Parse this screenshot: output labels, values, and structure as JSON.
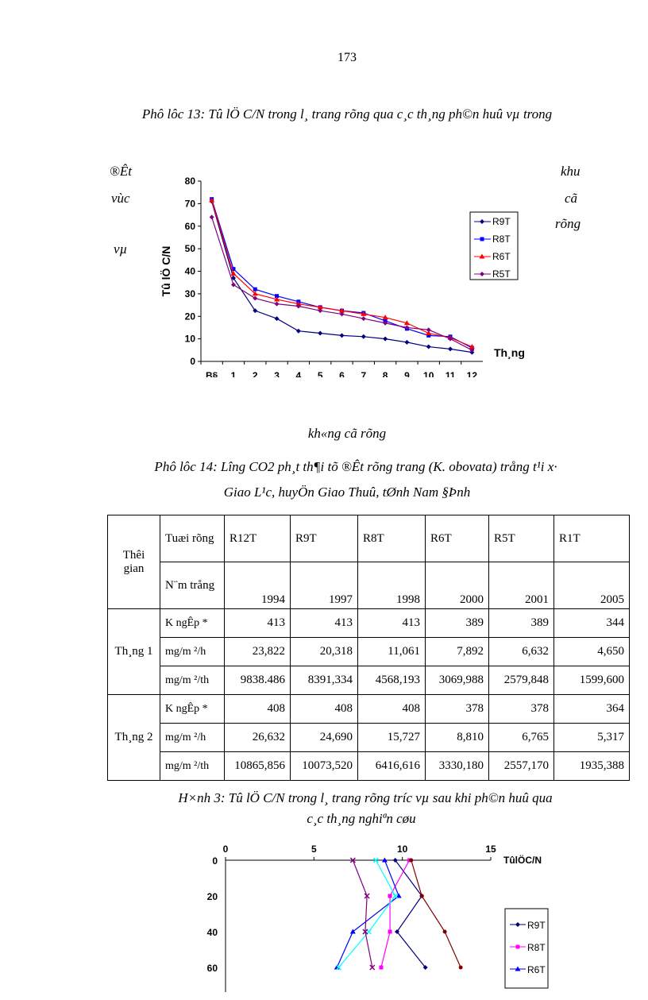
{
  "page_number": "173",
  "appendix13_title": "Phô lôc 13: Tû lÖ C/N trong l¸ trang rõng qua c¸c th¸ng ph©n huû vµ trong",
  "side_left": [
    "®Êt",
    "vùc",
    "vµ"
  ],
  "side_right": [
    "khu",
    "cã",
    "rõng"
  ],
  "below_chart1": "kh«ng cã rõng",
  "appendix14_title_1": "Phô lôc 14: L­îng  CO2 ph¸t th¶i tõ ®Êt rõng trang (K. obovata) trång t¹i x·",
  "appendix14_title_2": "Giao L¹c, huyÖn Giao Thuû, tØnh Nam §Þnh",
  "figure3_caption_1": "H×nh 3: Tû lÖ C/N trong l¸ trang rõng tr­íc  vµ sau khi ph©n huû qua",
  "figure3_caption_2": "c¸c th¸ng nghiªn cøu",
  "table": {
    "h_time": "Thêi gian",
    "h_age": "Tuæi rõng",
    "h_year": "N¨m trång",
    "stands": [
      "R12T",
      "R9T",
      "R8T",
      "R6T",
      "R5T",
      "R1T"
    ],
    "years": [
      "1994",
      "1997",
      "1998",
      "2000",
      "2001",
      "2005"
    ],
    "groups": [
      {
        "label": "Th¸ng 1",
        "rows": [
          {
            "label": "K ngÊp  *",
            "values": [
              "413",
              "413",
              "413",
              "389",
              "389",
              "344"
            ]
          },
          {
            "label": "mg/m ²/h",
            "values": [
              "23,822",
              "20,318",
              "11,061",
              "7,892",
              "6,632",
              "4,650"
            ]
          },
          {
            "label": "mg/m ²/th",
            "values": [
              "9838.486",
              "8391,334",
              "4568,193",
              "3069,988",
              "2579,848",
              "1599,600"
            ]
          }
        ]
      },
      {
        "label": "Th¸ng 2",
        "rows": [
          {
            "label": "K ngÊp  *",
            "values": [
              "408",
              "408",
              "408",
              "378",
              "378",
              "364"
            ]
          },
          {
            "label": "mg/m ²/h",
            "values": [
              "26,632",
              "24,690",
              "15,727",
              "8,810",
              "6,765",
              "5,317"
            ]
          },
          {
            "label": "mg/m ²/th",
            "values": [
              "10865,856",
              "10073,520",
              "6416,616",
              "3330,180",
              "2557,170",
              "1935,388"
            ]
          }
        ]
      }
    ]
  },
  "chart_data": [
    {
      "type": "line",
      "ylabel": "Tû lÖ C/N",
      "xlabel": "Th¸ng",
      "ylim": [
        0,
        80
      ],
      "yticks": [
        "0",
        "10",
        "20",
        "30",
        "40",
        "50",
        "60",
        "70",
        "80"
      ],
      "categories": [
        "B§",
        "1",
        "2",
        "3",
        "4",
        "5",
        "6",
        "7",
        "8",
        "9",
        "10",
        "11",
        "12"
      ],
      "legend": "right",
      "series": [
        {
          "name": "R9T",
          "color": "#000080",
          "marker": "diamond",
          "values": [
            71,
            37,
            22.5,
            19,
            13.5,
            12.5,
            11.5,
            11,
            10,
            8.5,
            6.5,
            5.5,
            4
          ]
        },
        {
          "name": "R8T",
          "color": "#0000ff",
          "marker": "square",
          "values": [
            72,
            41,
            32,
            29,
            26.5,
            24,
            22.5,
            21.5,
            18,
            14.5,
            11.5,
            11,
            6
          ]
        },
        {
          "name": "R6T",
          "color": "#ff0000",
          "marker": "triangle",
          "values": [
            71.5,
            39,
            30,
            27.5,
            25.5,
            24,
            22.5,
            21,
            19.5,
            17,
            12.5,
            10.5,
            6.5
          ]
        },
        {
          "name": "R5T",
          "color": "#800080",
          "marker": "diamond",
          "values": [
            64,
            34,
            28,
            25.5,
            24.5,
            22.5,
            21,
            19,
            17,
            15,
            14,
            10,
            5
          ]
        }
      ]
    },
    {
      "type": "line",
      "xlabel": "TûlÖC/N",
      "xlim": [
        0,
        15
      ],
      "xticks": [
        "0",
        "5",
        "10",
        "15"
      ],
      "yticks": [
        "0",
        "20",
        "40",
        "60"
      ],
      "legend": "right",
      "depths": [
        0,
        20,
        40,
        60
      ],
      "series": [
        {
          "name": "R9T",
          "color": "#000080",
          "marker": "diamond",
          "values": [
            9.6,
            11.1,
            9.7,
            11.3
          ]
        },
        {
          "name": "R8T",
          "color": "#ff00ff",
          "marker": "square",
          "values": [
            10.4,
            9.3,
            9.3,
            8.8
          ]
        },
        {
          "name": "R6T",
          "color": "#0000ff",
          "marker": "triangle",
          "values": [
            9.0,
            9.8,
            7.2,
            6.3
          ]
        },
        {
          "color": "#00ffff",
          "marker": "x",
          "values": [
            8.5,
            9.6,
            8.1,
            6.4
          ]
        },
        {
          "color": "#800080",
          "marker": "x",
          "values": [
            7.2,
            8.0,
            7.9,
            8.3
          ]
        },
        {
          "color": "#800000",
          "marker": "circle",
          "values": [
            10.5,
            11.1,
            12.4,
            13.3
          ]
        }
      ]
    }
  ]
}
